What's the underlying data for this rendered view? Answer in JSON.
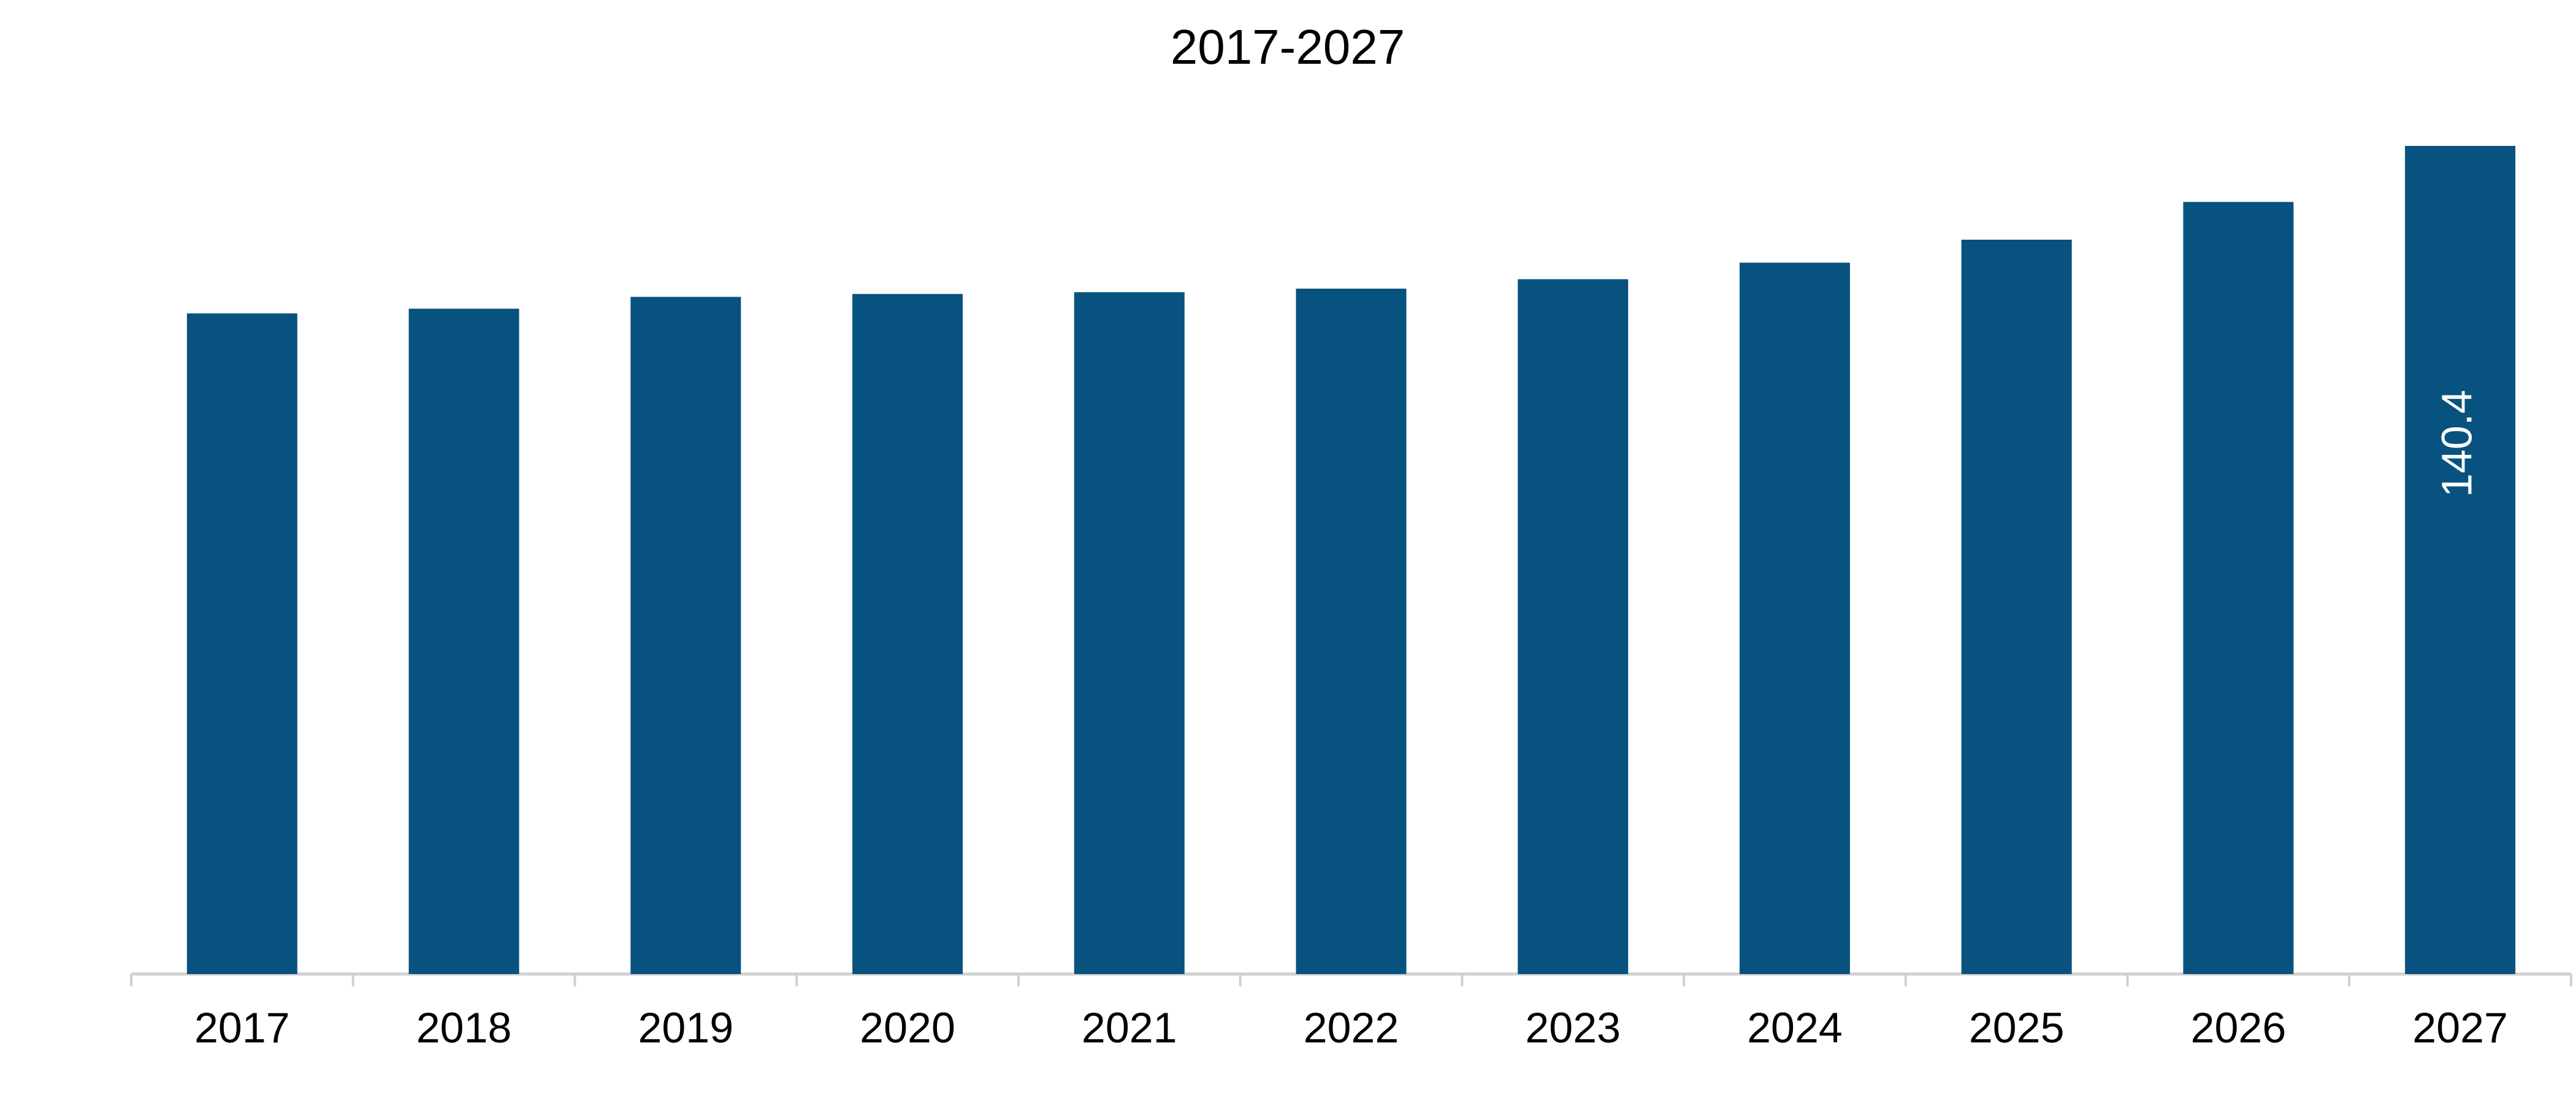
{
  "chart_data": {
    "type": "bar",
    "title": "2017-2027",
    "categories": [
      "2017",
      "2018",
      "2019",
      "2020",
      "2021",
      "2022",
      "2023",
      "2024",
      "2025",
      "2026",
      "2027"
    ],
    "values": [
      112.0,
      112.8,
      114.8,
      115.3,
      115.6,
      116.2,
      117.8,
      120.6,
      124.5,
      130.9,
      140.4
    ],
    "value_labels": [
      null,
      null,
      null,
      null,
      null,
      null,
      null,
      null,
      null,
      null,
      "140.4"
    ],
    "color": "#08527f"
  }
}
